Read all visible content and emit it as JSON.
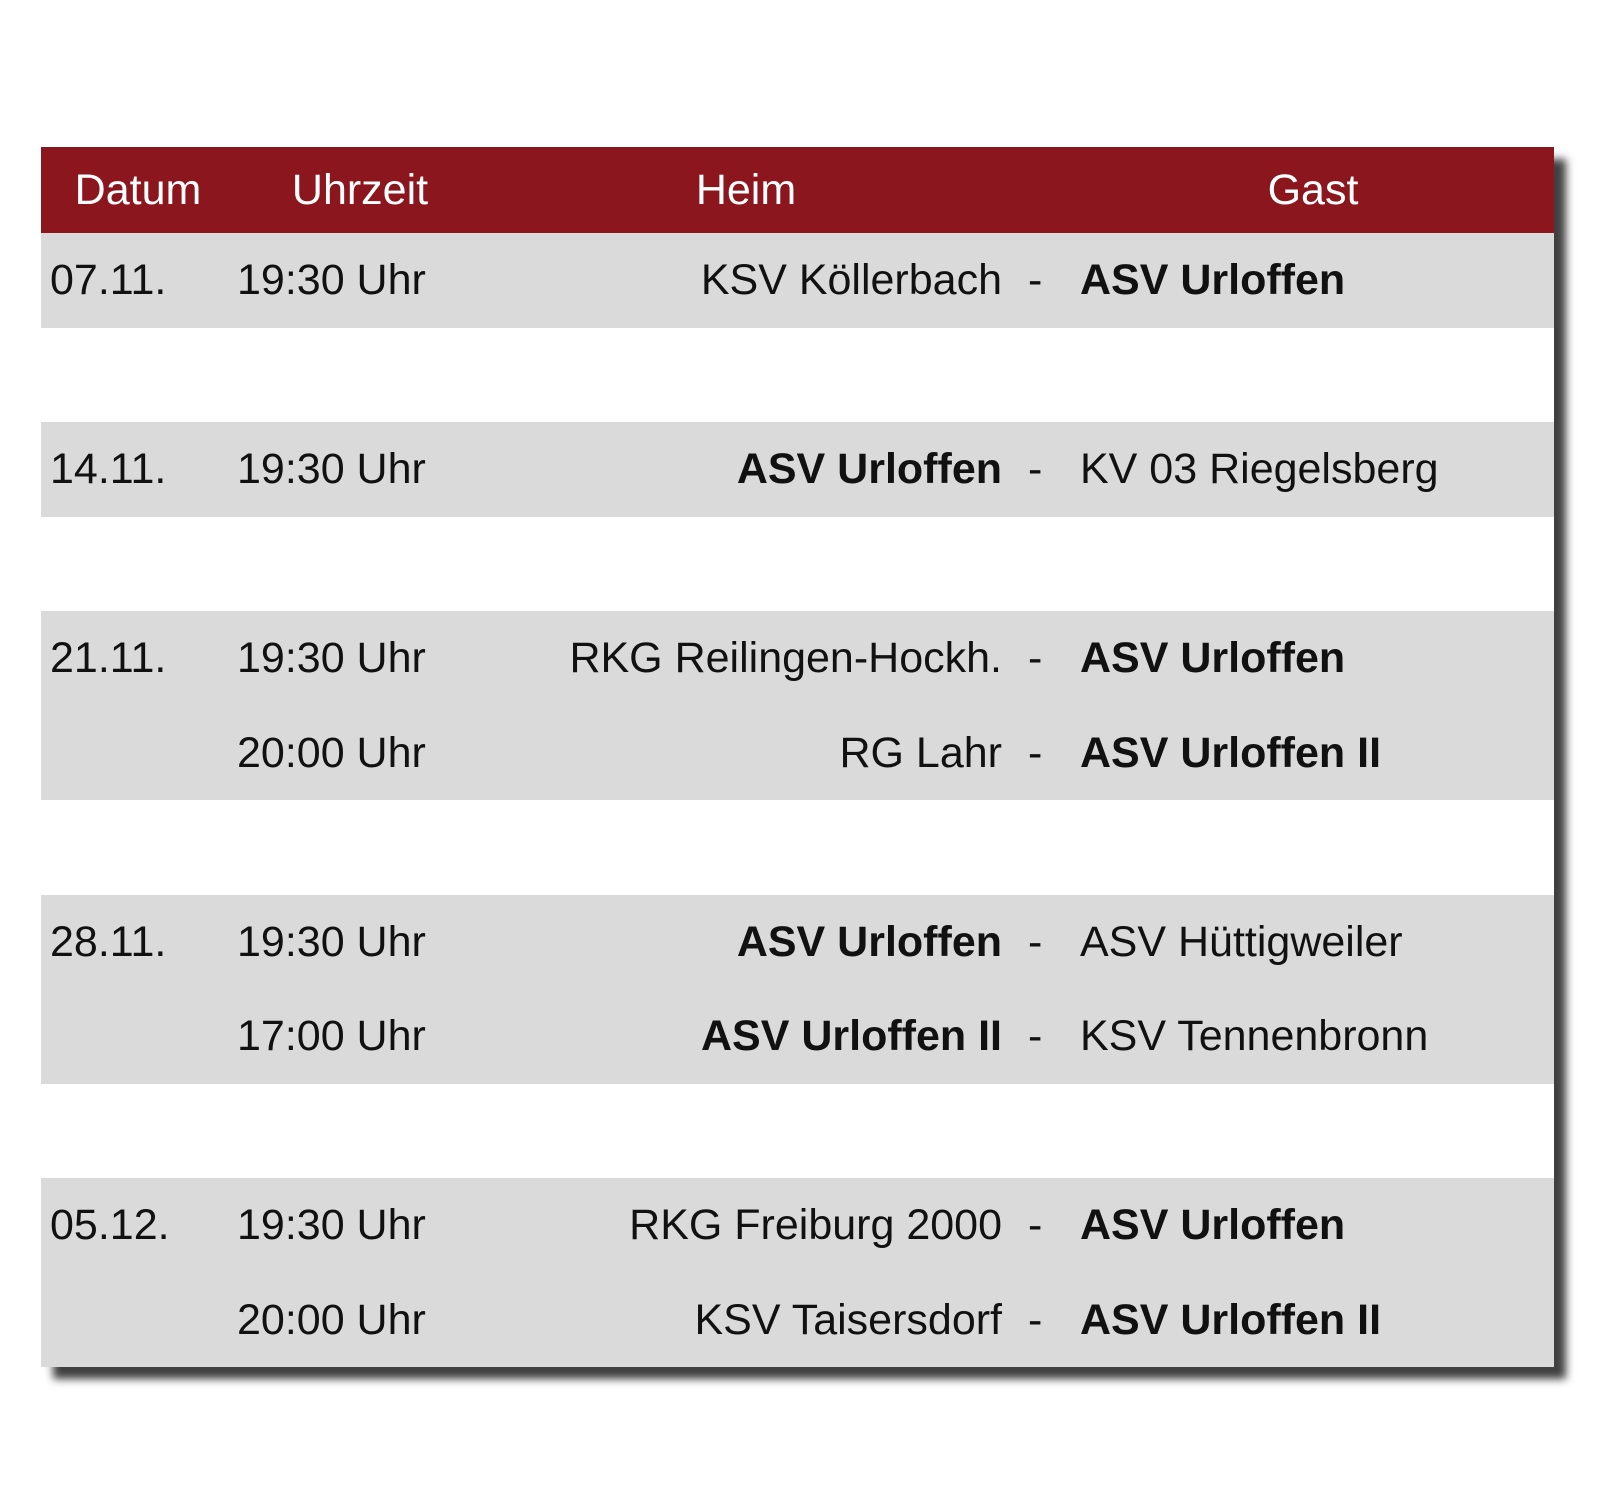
{
  "header": {
    "columns": [
      "Datum",
      "Uhrzeit",
      "Heim",
      "Gast"
    ]
  },
  "separator": "-",
  "groups": [
    {
      "date": "07.11.",
      "matches": [
        {
          "time": "19:30 Uhr",
          "home": "KSV Köllerbach",
          "guest": "ASV Urloffen",
          "highlight": "guest"
        }
      ]
    },
    {
      "date": "14.11.",
      "matches": [
        {
          "time": "19:30 Uhr",
          "home": "ASV Urloffen",
          "guest": "KV 03 Riegelsberg",
          "highlight": "home"
        }
      ]
    },
    {
      "date": "21.11.",
      "matches": [
        {
          "time": "19:30 Uhr",
          "home": "RKG Reilingen-Hockh.",
          "guest": "ASV Urloffen",
          "highlight": "guest"
        },
        {
          "time": "20:00 Uhr",
          "home": "RG Lahr",
          "guest": "ASV Urloffen II",
          "highlight": "guest"
        }
      ]
    },
    {
      "date": "28.11.",
      "matches": [
        {
          "time": "19:30 Uhr",
          "home": "ASV Urloffen",
          "guest": "ASV Hüttigweiler",
          "highlight": "home"
        },
        {
          "time": "17:00 Uhr",
          "home": "ASV Urloffen II",
          "guest": "KSV Tennenbronn",
          "highlight": "home"
        }
      ]
    },
    {
      "date": "05.12.",
      "matches": [
        {
          "time": "19:30 Uhr",
          "home": "RKG Freiburg 2000",
          "guest": "ASV Urloffen",
          "highlight": "guest"
        },
        {
          "time": "20:00 Uhr",
          "home": "KSV Taisersdorf",
          "guest": "ASV Urloffen II",
          "highlight": "guest"
        }
      ]
    }
  ]
}
